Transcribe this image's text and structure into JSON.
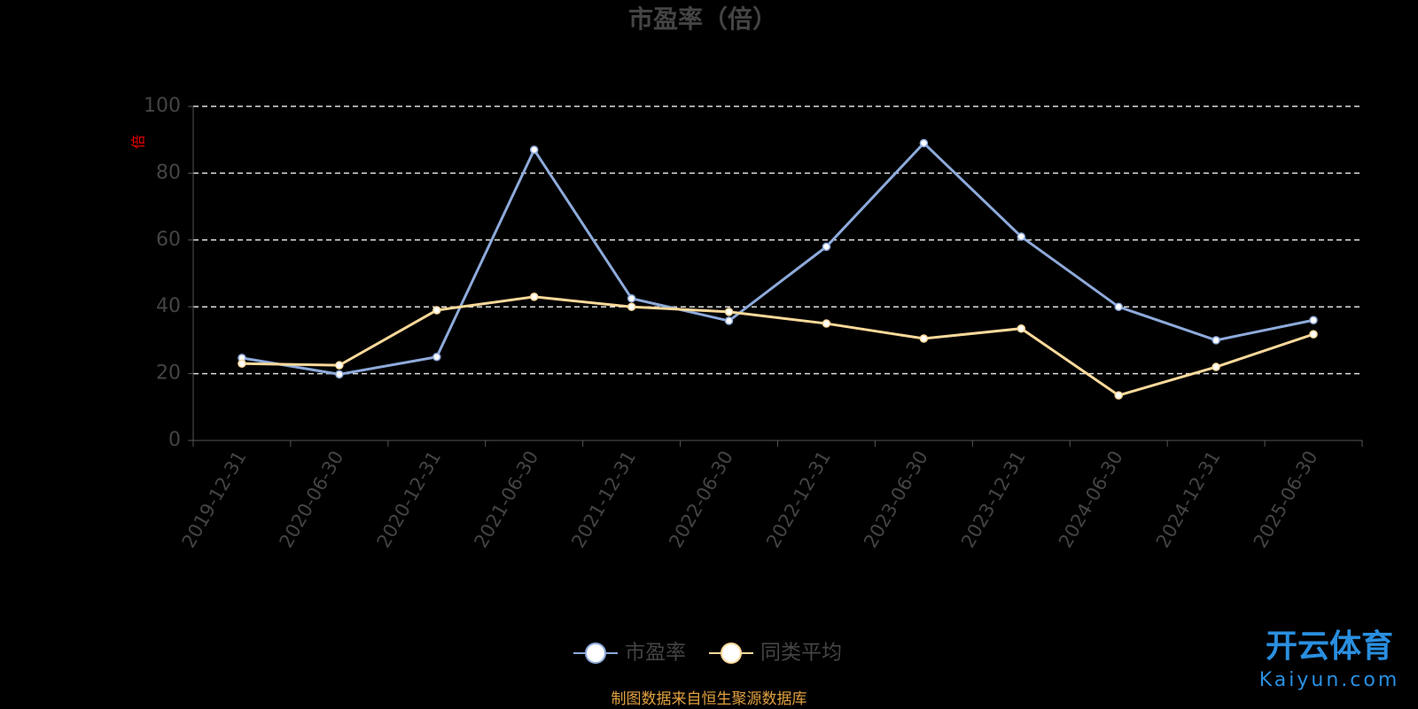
{
  "chart_data": {
    "type": "line",
    "title": "市盈率（倍）",
    "y_label": "倍",
    "categories": [
      "2019-12-31",
      "2020-06-30",
      "2020-12-31",
      "2021-06-30",
      "2021-12-31",
      "2022-06-30",
      "2022-12-31",
      "2023-06-30",
      "2023-12-31",
      "2024-06-30",
      "2024-12-31",
      "2025-06-30"
    ],
    "series": [
      {
        "name": "市盈率",
        "color": "#8eaadb",
        "values": [
          24.7,
          19.8,
          25,
          87,
          42.5,
          35.8,
          58,
          89,
          61,
          40,
          30,
          36
        ]
      },
      {
        "name": "同类平均",
        "color": "#fbd99a",
        "values": [
          23,
          22.5,
          39,
          43,
          40,
          38.5,
          35,
          30.5,
          33.5,
          13.5,
          22,
          31.8
        ]
      }
    ],
    "ylim": [
      0,
      100
    ],
    "yticks": [
      0,
      20,
      40,
      60,
      80,
      100
    ],
    "grid": true,
    "legend": "bottom",
    "source": "制图数据来自恒生聚源数据库",
    "watermark": {
      "name": "开云体育",
      "site": "Kaiyun.com"
    }
  }
}
